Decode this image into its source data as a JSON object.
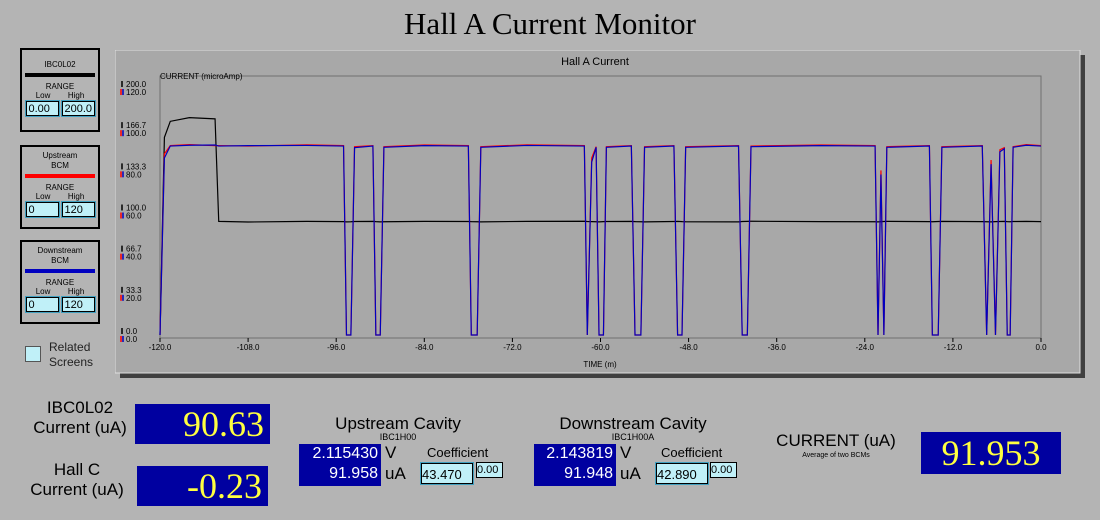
{
  "title": "Hall A Current Monitor",
  "panels": [
    {
      "range": "RANGE",
      "low_label": "Low",
      "high_label": "High",
      "low": "0.00",
      "high": "200.0"
    },
    {
      "range": "RANGE",
      "low_label": "Low",
      "high_label": "High",
      "low": "0",
      "high": "120"
    },
    {
      "range": "RANGE",
      "low_label": "Low",
      "high_label": "High",
      "low": "0",
      "high": "120"
    }
  ],
  "related_screens": "Related Screens",
  "chart_data": {
    "type": "line",
    "title": "Hall A Current",
    "y_label": "CURRENT (microAmp)",
    "x_label": "TIME (m)",
    "x": [
      -120,
      -119.4,
      -118.6,
      -116,
      -112.5,
      -112,
      -108,
      -100,
      -95,
      -94.6,
      -94,
      -93.5,
      -91,
      -90.6,
      -90,
      -89.5,
      -84,
      -78,
      -77.6,
      -76.8,
      -76.3,
      -70,
      -62.2,
      -61.8,
      -61.2,
      -60.6,
      -60.2,
      -59.6,
      -59.2,
      -55.8,
      -55.3,
      -54.5,
      -54,
      -50,
      -49.5,
      -48.9,
      -48.4,
      -41.2,
      -40.7,
      -40,
      -39.5,
      -30,
      -22.6,
      -22.2,
      -21.8,
      -21.4,
      -21,
      -15.2,
      -14.8,
      -14,
      -13.5,
      -8,
      -7.4,
      -6.8,
      -6.2,
      -5.6,
      -5,
      -4.6,
      -4.2,
      -3.8,
      -2,
      0
    ],
    "series": [
      {
        "name": "IBC0L02",
        "color": "#000000",
        "axis": "y2",
        "values": [
          0,
          160,
          173,
          176,
          175,
          92,
          91.5,
          92,
          91.8,
          91.6,
          91.7,
          91.9,
          92,
          91.8,
          91.6,
          91.7,
          92,
          91.9,
          91.8,
          91.7,
          91.6,
          92,
          92.1,
          91.9,
          91.8,
          91.7,
          91.6,
          91.8,
          91.9,
          92,
          91.8,
          91.7,
          91.6,
          91.9,
          92,
          91.8,
          91.7,
          91.6,
          91.9,
          92,
          92.1,
          91.8,
          91.7,
          91.6,
          91.8,
          91.9,
          92,
          91.8,
          91.7,
          91.9,
          92,
          91.8,
          91.7,
          91.6,
          91.8,
          91.9,
          92,
          91.8,
          91.7,
          91.9,
          92,
          91.8
        ]
      },
      {
        "name": "Upstream BCM",
        "color": "#ff0000",
        "values": [
          0,
          88,
          92,
          92.5,
          92,
          92,
          91.8,
          92.4,
          92,
          0,
          0,
          91.5,
          92,
          0,
          0,
          91.5,
          92.3,
          92,
          0,
          0,
          91.5,
          92.4,
          92,
          0,
          86,
          91.5,
          0,
          0,
          91.5,
          92,
          0,
          0,
          91.5,
          92,
          0,
          0,
          91.5,
          92,
          0,
          0,
          91.8,
          92.3,
          92,
          0,
          80,
          0,
          91.5,
          92,
          0,
          0,
          91.5,
          92,
          0,
          85,
          0,
          90,
          91,
          0,
          0,
          91.5,
          92.5,
          92
        ]
      },
      {
        "name": "Downstream BCM",
        "color": "#0000c0",
        "values": [
          0,
          86,
          91.8,
          92.2,
          92.3,
          91.8,
          92,
          92.1,
          91.8,
          0,
          0,
          91,
          91.8,
          0,
          0,
          91.2,
          92,
          91.8,
          0,
          0,
          91.2,
          92.1,
          91.8,
          0,
          84,
          91.2,
          0,
          0,
          91.2,
          91.8,
          0,
          0,
          91.2,
          91.8,
          0,
          0,
          91.2,
          91.8,
          0,
          0,
          91.5,
          92,
          91.8,
          0,
          78,
          0,
          91.2,
          91.8,
          0,
          0,
          91.2,
          91.8,
          0,
          83,
          0,
          89,
          90.5,
          0,
          0,
          91.2,
          92.2,
          91.8
        ]
      }
    ],
    "xlim": [
      -120,
      0
    ],
    "xticks": [
      {
        "value": -120,
        "label": "-120.0"
      },
      {
        "value": -108,
        "label": "-108.0"
      },
      {
        "value": -96,
        "label": "-96.0"
      },
      {
        "value": -84,
        "label": "-84.0"
      },
      {
        "value": -72,
        "label": "-72.0"
      },
      {
        "value": -60,
        "label": "-60.0"
      },
      {
        "value": -48,
        "label": "-48.0"
      },
      {
        "value": -36,
        "label": "-36.0"
      },
      {
        "value": -24,
        "label": "-24.0"
      },
      {
        "value": -12,
        "label": "-12.0"
      },
      {
        "value": 0,
        "label": "0.0"
      }
    ],
    "ylim": [
      0,
      120
    ],
    "yticks": [
      {
        "value": 0,
        "label": "0.0"
      },
      {
        "value": 20,
        "label": "20.0"
      },
      {
        "value": 40,
        "label": "40.0"
      },
      {
        "value": 60,
        "label": "60.0"
      },
      {
        "value": 80,
        "label": "80.0"
      },
      {
        "value": 100,
        "label": "100.0"
      },
      {
        "value": 120,
        "label": "120.0"
      }
    ],
    "y2lim": [
      0,
      200
    ],
    "y2ticks": [
      {
        "value": 0,
        "label": "0.0"
      },
      {
        "value": 33.3,
        "label": "33.3"
      },
      {
        "value": 66.7,
        "label": "66.7"
      },
      {
        "value": 100,
        "label": "100.0"
      },
      {
        "value": 133.3,
        "label": "133.3"
      },
      {
        "value": 166.7,
        "label": "166.7"
      },
      {
        "value": 200,
        "label": "200.0"
      }
    ]
  },
  "readouts": {
    "ibc": {
      "label": "IBC0L02 Current (uA)",
      "value": "90.63"
    },
    "hallc": {
      "label": "Hall C Current (uA)",
      "value": "-0.23"
    },
    "upstream": {
      "title": "Upstream Cavity",
      "device": "IBC1H00",
      "voltage": "2.115430",
      "voltage_unit": "V",
      "current": "91.958",
      "current_unit": "uA",
      "coefficient_label": "Coefficient",
      "coefficient": "43.470",
      "offset": "0.00"
    },
    "downstream": {
      "title": "Downstream Cavity",
      "device": "IBC1H00A",
      "voltage": "2.143819",
      "voltage_unit": "V",
      "current": "91.948",
      "current_unit": "uA",
      "coefficient_label": "Coefficient",
      "coefficient": "42.890",
      "offset": "0.00"
    },
    "average": {
      "label": "CURRENT (uA)",
      "note": "Average of two BCMs",
      "value": "91.953"
    }
  }
}
